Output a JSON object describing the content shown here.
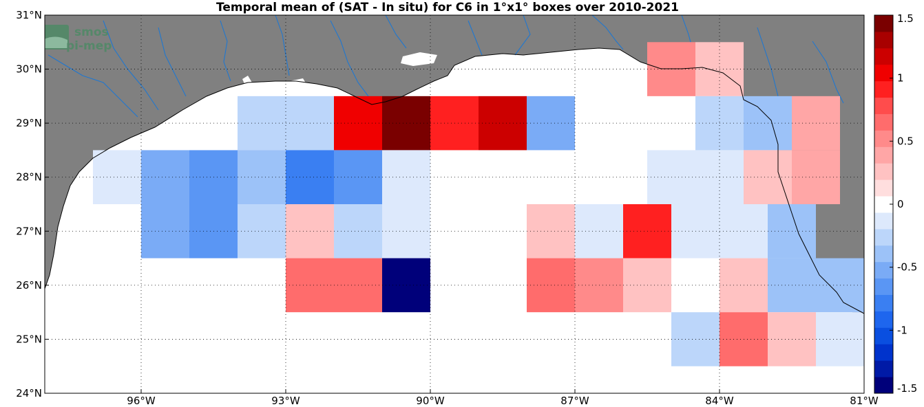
{
  "title": "Temporal mean of (SAT - In situ) for C6 in 1°x1° boxes over 2010-2021",
  "logo": {
    "line1": "smos",
    "line2": "pi-mep",
    "colors": [
      "#4e8a66",
      "#6fa98a"
    ]
  },
  "colors": {
    "land": "#808080",
    "ocean": "#ffffff",
    "rivers": "#1f77d0",
    "coast": "#000000"
  },
  "map": {
    "lon_range": [
      -98,
      -81
    ],
    "lat_range": [
      24,
      31
    ],
    "lon_ticks": [
      {
        "value": -96,
        "label": "96°W"
      },
      {
        "value": -93,
        "label": "93°W"
      },
      {
        "value": -90,
        "label": "90°W"
      },
      {
        "value": -87,
        "label": "87°W"
      },
      {
        "value": -84,
        "label": "84°W"
      },
      {
        "value": -81,
        "label": "81°W"
      }
    ],
    "lat_ticks": [
      {
        "value": 24,
        "label": "24°N"
      },
      {
        "value": 25,
        "label": "25°N"
      },
      {
        "value": 26,
        "label": "26°N"
      },
      {
        "value": 27,
        "label": "27°N"
      },
      {
        "value": 28,
        "label": "28°N"
      },
      {
        "value": 29,
        "label": "29°N"
      },
      {
        "value": 30,
        "label": "30°N"
      },
      {
        "value": 31,
        "label": "31°N"
      }
    ],
    "grid": "dotted"
  },
  "chart_data": {
    "type": "heatmap",
    "title": "Temporal mean of (SAT - In situ) for C6 in 1°x1° boxes over 2010-2021",
    "cell_size_deg": 1,
    "cells": [
      {
        "lon": -93.5,
        "lat": 29,
        "value": -0.2
      },
      {
        "lon": -92.5,
        "lat": 29,
        "value": -0.2
      },
      {
        "lon": -91.5,
        "lat": 29,
        "value": 1.0
      },
      {
        "lon": -90.5,
        "lat": 29,
        "value": 1.4
      },
      {
        "lon": -89.5,
        "lat": 29,
        "value": 0.9
      },
      {
        "lon": -88.5,
        "lat": 29,
        "value": 1.2
      },
      {
        "lon": -87.5,
        "lat": 29,
        "value": -0.5
      },
      {
        "lon": -85,
        "lat": 30,
        "value": 0.5
      },
      {
        "lon": -84,
        "lat": 30,
        "value": 0.2
      },
      {
        "lon": -84,
        "lat": 29,
        "value": -0.2
      },
      {
        "lon": -83,
        "lat": 29,
        "value": -0.4
      },
      {
        "lon": -82,
        "lat": 29,
        "value": 0.4
      },
      {
        "lon": -96.5,
        "lat": 28,
        "value": -0.1
      },
      {
        "lon": -95.5,
        "lat": 28,
        "value": -0.5
      },
      {
        "lon": -94.5,
        "lat": 28,
        "value": -0.6
      },
      {
        "lon": -93.5,
        "lat": 28,
        "value": -0.4
      },
      {
        "lon": -92.5,
        "lat": 28,
        "value": -0.8
      },
      {
        "lon": -91.5,
        "lat": 28,
        "value": -0.6
      },
      {
        "lon": -90.5,
        "lat": 28,
        "value": -0.1
      },
      {
        "lon": -85,
        "lat": 28,
        "value": -0.1
      },
      {
        "lon": -84,
        "lat": 28,
        "value": -0.1
      },
      {
        "lon": -83,
        "lat": 28,
        "value": 0.2
      },
      {
        "lon": -82,
        "lat": 28,
        "value": 0.4
      },
      {
        "lon": -95.5,
        "lat": 27,
        "value": -0.5
      },
      {
        "lon": -94.5,
        "lat": 27,
        "value": -0.6
      },
      {
        "lon": -93.5,
        "lat": 27,
        "value": -0.2
      },
      {
        "lon": -92.5,
        "lat": 27,
        "value": 0.3
      },
      {
        "lon": -91.5,
        "lat": 27,
        "value": -0.2
      },
      {
        "lon": -90.5,
        "lat": 27,
        "value": -0.1
      },
      {
        "lon": -87.5,
        "lat": 27,
        "value": 0.3
      },
      {
        "lon": -86.5,
        "lat": 27,
        "value": -0.1
      },
      {
        "lon": -85.5,
        "lat": 27,
        "value": 0.9
      },
      {
        "lon": -84.5,
        "lat": 27,
        "value": -0.1
      },
      {
        "lon": -83.5,
        "lat": 27,
        "value": -0.1
      },
      {
        "lon": -82.5,
        "lat": 27,
        "value": -0.4
      },
      {
        "lon": -92.5,
        "lat": 26,
        "value": 0.7
      },
      {
        "lon": -91.5,
        "lat": 26,
        "value": 0.6
      },
      {
        "lon": -90.5,
        "lat": 26,
        "value": -1.5
      },
      {
        "lon": -87.5,
        "lat": 26,
        "value": 0.6
      },
      {
        "lon": -86.5,
        "lat": 26,
        "value": 0.5
      },
      {
        "lon": -85.5,
        "lat": 26,
        "value": 0.2
      },
      {
        "lon": -83.5,
        "lat": 26,
        "value": 0.2
      },
      {
        "lon": -82.5,
        "lat": 26,
        "value": -0.4
      },
      {
        "lon": -81.5,
        "lat": 26,
        "value": -0.4
      },
      {
        "lon": -84.5,
        "lat": 25,
        "value": -0.2
      },
      {
        "lon": -83.5,
        "lat": 25,
        "value": 0.6
      },
      {
        "lon": -82.5,
        "lat": 25,
        "value": 0.2
      },
      {
        "lon": -81.5,
        "lat": 25,
        "value": -0.1
      }
    ],
    "colorbar": {
      "range": [
        -1.5,
        1.5
      ],
      "ticks": [
        {
          "value": 1.5,
          "label": "1.5"
        },
        {
          "value": 1,
          "label": "1"
        },
        {
          "value": 0.5,
          "label": "0.5"
        },
        {
          "value": 0,
          "label": "0"
        },
        {
          "value": -0.5,
          "label": "-0.5"
        },
        {
          "value": -1,
          "label": "-1"
        },
        {
          "value": -1.5,
          "label": "-1.5"
        }
      ]
    }
  }
}
